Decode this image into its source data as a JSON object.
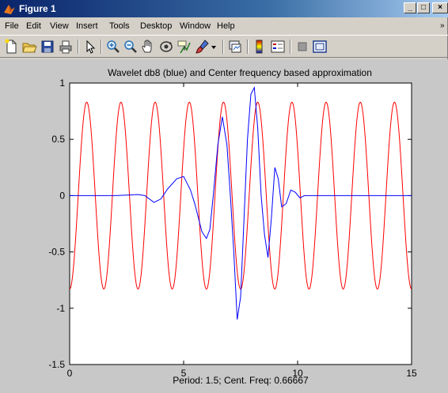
{
  "window": {
    "title": "Figure 1",
    "controls": {
      "minimize": "_",
      "maximize": "□",
      "close": "×"
    }
  },
  "menu": {
    "items": [
      "File",
      "Edit",
      "View",
      "Insert",
      "Tools",
      "Desktop",
      "Window",
      "Help"
    ],
    "overflow": "»"
  },
  "toolbar": {
    "icons": [
      "new-figure-icon",
      "open-file-icon",
      "save-icon",
      "print-icon",
      "pointer-icon",
      "zoom-in-icon",
      "zoom-out-icon",
      "pan-icon",
      "rotate-3d-icon",
      "data-cursor-icon",
      "brush-icon",
      "brush-dropdown-icon",
      "link-plot-icon",
      "colorbar-icon",
      "legend-icon",
      "hide-plot-tools-icon",
      "show-plot-tools-icon"
    ]
  },
  "chart_data": {
    "type": "line",
    "title": "Wavelet db8 (blue) and Center frequency based approximation",
    "xlabel": "Period: 1.5; Cent. Freq: 0.66667",
    "ylabel": "",
    "xlim": [
      0,
      15
    ],
    "ylim": [
      -1.5,
      1
    ],
    "xticks": [
      "0",
      "5",
      "10",
      "15"
    ],
    "yticks": [
      "1",
      "0.5",
      "0",
      "-0.5",
      "-1",
      "-1.5"
    ],
    "grid": false,
    "series": [
      {
        "color": "#ff0000",
        "function": "cos",
        "amplitude": 0.83,
        "period": 1.5,
        "x_range": [
          0,
          15
        ],
        "peaks_x": [
          0.75,
          2.25,
          3.75,
          5.25,
          6.75,
          8.25,
          9.75,
          11.25,
          12.75,
          14.25
        ]
      },
      {
        "color": "#0000ff",
        "x": [
          0,
          1,
          2,
          2.5,
          3,
          3.3,
          3.7,
          4.0,
          4.3,
          4.7,
          5.0,
          5.3,
          5.5,
          5.8,
          6.0,
          6.15,
          6.3,
          6.5,
          6.7,
          6.9,
          7.05,
          7.2,
          7.35,
          7.5,
          7.65,
          7.8,
          7.95,
          8.1,
          8.25,
          8.4,
          8.55,
          8.7,
          8.85,
          9.0,
          9.15,
          9.3,
          9.5,
          9.7,
          9.9,
          10.1,
          10.3,
          10.6,
          11,
          12,
          13,
          14,
          15
        ],
        "y": [
          0,
          0,
          0,
          0.005,
          0.01,
          0.0,
          -0.06,
          -0.03,
          0.06,
          0.15,
          0.17,
          0.05,
          -0.08,
          -0.32,
          -0.38,
          -0.3,
          0.0,
          0.45,
          0.7,
          0.45,
          0.0,
          -0.5,
          -1.1,
          -0.9,
          -0.2,
          0.5,
          0.9,
          0.96,
          0.6,
          0.0,
          -0.35,
          -0.55,
          -0.2,
          0.25,
          0.15,
          -0.1,
          -0.07,
          0.05,
          0.03,
          -0.02,
          0.0,
          0.0,
          0,
          0,
          0,
          0,
          0
        ]
      }
    ]
  }
}
